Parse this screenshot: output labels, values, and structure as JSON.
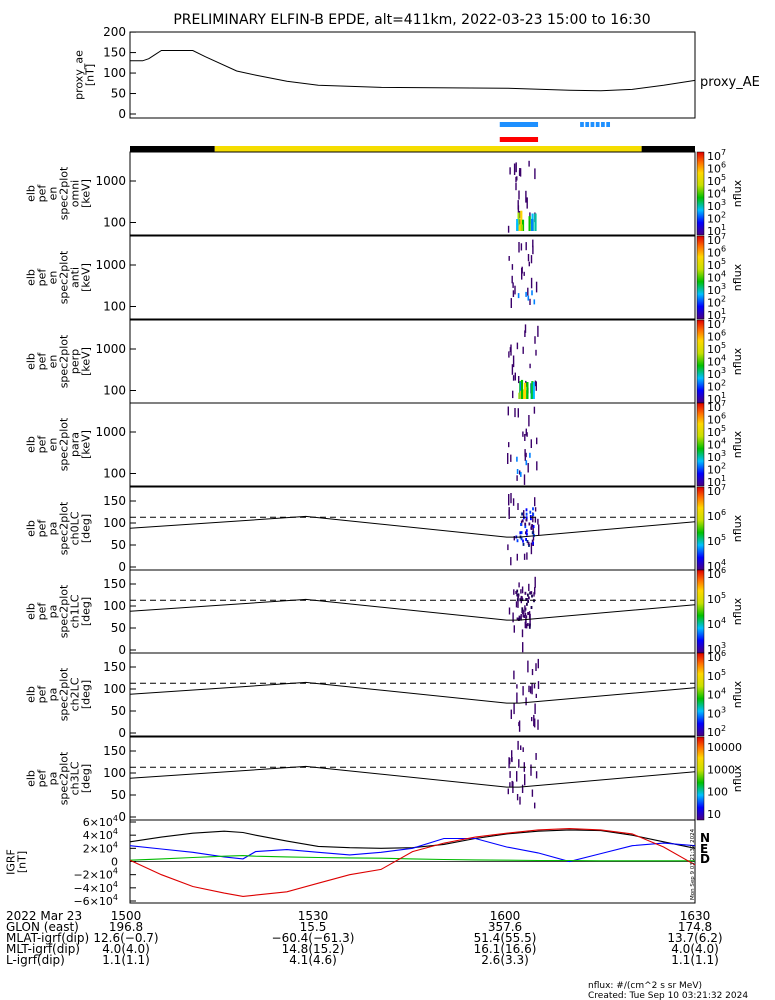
{
  "title": "PRELIMINARY ELFIN-B EPDE, alt=411km, 2022-03-23 15:00 to 16:30",
  "ae_panel": {
    "ylabel_lines": [
      "proxy_ae",
      "[nT]"
    ],
    "yticks": [
      "200",
      "150",
      "100",
      "50",
      "0"
    ],
    "ylim": [
      0,
      210
    ],
    "legend": "proxy_AE"
  },
  "epde_panels": [
    {
      "ylabel_lines": [
        "elb",
        "pef",
        "en",
        "spec2plot",
        "omni",
        "[keV]"
      ],
      "yticks": [
        "1000",
        "100"
      ]
    },
    {
      "ylabel_lines": [
        "elb",
        "pef",
        "en",
        "spec2plot",
        "anti",
        "[keV]"
      ],
      "yticks": [
        "1000",
        "100"
      ]
    },
    {
      "ylabel_lines": [
        "elb",
        "pef",
        "en",
        "spec2plot",
        "perp",
        "[keV]"
      ],
      "yticks": [
        "1000",
        "100"
      ]
    },
    {
      "ylabel_lines": [
        "elb",
        "pef",
        "en",
        "spec2plot",
        "para",
        "[keV]"
      ],
      "yticks": [
        "1000",
        "100"
      ]
    },
    {
      "ylabel_lines": [
        "elb",
        "pef",
        "pa",
        "spec2plot",
        "ch0LC",
        "[deg]"
      ],
      "yticks": [
        "150",
        "100",
        "50",
        "0"
      ]
    },
    {
      "ylabel_lines": [
        "elb",
        "pef",
        "pa",
        "spec2plot",
        "ch1LC",
        "[deg]"
      ],
      "yticks": [
        "150",
        "100",
        "50",
        "0"
      ]
    },
    {
      "ylabel_lines": [
        "elb",
        "pef",
        "pa",
        "spec2plot",
        "ch2LC",
        "[deg]"
      ],
      "yticks": [
        "150",
        "100",
        "50",
        "0"
      ]
    },
    {
      "ylabel_lines": [
        "elb",
        "pef",
        "pa",
        "spec2plot",
        "ch3LC",
        "[deg]"
      ],
      "yticks": [
        "150",
        "100",
        "50",
        "0"
      ]
    }
  ],
  "colorbars": [
    {
      "unit": "nflux",
      "min_exp": 1,
      "max_exp": 7
    },
    {
      "unit": "nflux",
      "min_exp": 1,
      "max_exp": 7
    },
    {
      "unit": "nflux",
      "min_exp": 1,
      "max_exp": 7
    },
    {
      "unit": "nflux",
      "min_exp": 1,
      "max_exp": 7
    },
    {
      "unit": "nflux",
      "min_exp": 4,
      "max_exp": 7
    },
    {
      "unit": "nflux",
      "min_exp": 3,
      "max_exp": 6
    },
    {
      "unit": "nflux",
      "min_exp": 2,
      "max_exp": 6
    },
    {
      "unit": "nflux",
      "linear_labels": [
        "10000",
        "1000",
        "100",
        "10"
      ]
    }
  ],
  "igrf_panel": {
    "ylabel_lines": [
      "IGRF",
      "[nT]"
    ],
    "ytick_coeffs": [
      "6",
      "4",
      "2",
      "0",
      "−2",
      "−4",
      "−6"
    ],
    "ylim": [
      -60000,
      60000
    ],
    "legend": [
      "N",
      "E",
      "D"
    ],
    "side_label": "Mon Sep 9 03:21:32 2024"
  },
  "colors": {
    "series_black": "#000000",
    "series_blue": "#0000ff",
    "series_green": "#00bb00",
    "series_red": "#dd0000",
    "bar_black": "#000000",
    "bar_yellow": "#f5dd00",
    "marker_blue": "#1e90ff",
    "marker_red": "#ff0000",
    "legend_N": "#00008b",
    "legend_E": "#008800",
    "legend_D": "#cc5500"
  },
  "footer": {
    "rows": [
      {
        "label": "2022 Mar 23",
        "values": [
          "1500",
          "1530",
          "1600",
          "1630"
        ]
      },
      {
        "label": "GLON (east)",
        "values": [
          "196.8",
          "15.5",
          "357.6",
          "174.8"
        ]
      },
      {
        "label": "MLAT-igrf(dip)",
        "values": [
          "12.6(−0.7)",
          "−60.4(−61.3)",
          "51.4(55.5)",
          "13.7(6.2)"
        ]
      },
      {
        "label": "MLT-igrf(dip)",
        "values": [
          "4.0(4.0)",
          "14.8(15.2)",
          "16.1(16.6)",
          "4.0(4.0)"
        ]
      },
      {
        "label": "L-igrf(dip)",
        "values": [
          "1.1(1.1)",
          "4.1(4.6)",
          "2.6(3.3)",
          "1.1(1.1)"
        ]
      }
    ],
    "note1": "nflux: #/(cm^2 s sr MeV)",
    "note2": "Created: Tue Sep 10 03:21:32 2024"
  },
  "chart_data": {
    "type": "spectrogram",
    "x_range_minutes": [
      0,
      90
    ],
    "x_tick_labels": [
      "1500",
      "1530",
      "1600",
      "1630"
    ],
    "proxy_ae": {
      "x": [
        0,
        2,
        3,
        4,
        5,
        10,
        12,
        17,
        20,
        25,
        30,
        40,
        60,
        70,
        75,
        80,
        85,
        90
      ],
      "y": [
        130,
        130,
        135,
        145,
        155,
        155,
        140,
        105,
        95,
        80,
        70,
        65,
        63,
        58,
        57,
        60,
        70,
        82
      ]
    },
    "region_bar": [
      {
        "x0": 0,
        "x1": 13.5,
        "color": "black"
      },
      {
        "x0": 13.5,
        "x1": 81.5,
        "color": "yellow"
      },
      {
        "x0": 81.5,
        "x1": 90,
        "color": "black"
      }
    ],
    "marker_blue": [
      {
        "x0": 58.9,
        "x1": 65.0
      },
      {
        "x0": 71.7,
        "x1": 76.7
      }
    ],
    "marker_red": [
      {
        "x0": 58.9,
        "x1": 65.0
      }
    ],
    "pitch_angle_loss_cone": {
      "x": [
        0,
        28,
        60,
        62,
        90
      ],
      "solid": [
        88,
        115,
        68,
        68,
        103
      ],
      "dashed": [
        113,
        113,
        113,
        113,
        113
      ]
    },
    "igrf": {
      "x_min": [
        0,
        5,
        10,
        15,
        18,
        20,
        25,
        30,
        35,
        40,
        45,
        50,
        55,
        60,
        65,
        70,
        75,
        80,
        85,
        90
      ],
      "black": [
        30000,
        37000,
        43000,
        46000,
        44000,
        40000,
        31000,
        23000,
        21000,
        20000,
        21000,
        26000,
        35000,
        42000,
        46000,
        48000,
        47000,
        40000,
        30000,
        20000
      ],
      "blue": [
        24000,
        19000,
        14000,
        7000,
        4000,
        15000,
        18000,
        14000,
        10000,
        14000,
        20000,
        35000,
        35000,
        22000,
        13000,
        0,
        12000,
        24000,
        28000,
        24000
      ],
      "green": [
        2000,
        4000,
        6000,
        8000,
        9000,
        8000,
        7000,
        6000,
        5500,
        5000,
        4000,
        3000,
        2500,
        2000,
        1500,
        1500,
        1000,
        1000,
        1000,
        1000
      ],
      "red": [
        2000,
        -20000,
        -38000,
        -48000,
        -53000,
        -51000,
        -46000,
        -33000,
        -20000,
        -12000,
        15000,
        28000,
        37000,
        43000,
        48000,
        50000,
        48000,
        42000,
        22000,
        -5000
      ]
    },
    "energy_range_keV": [
      50,
      5000
    ],
    "pitch_angle_range_deg": [
      0,
      180
    ]
  }
}
